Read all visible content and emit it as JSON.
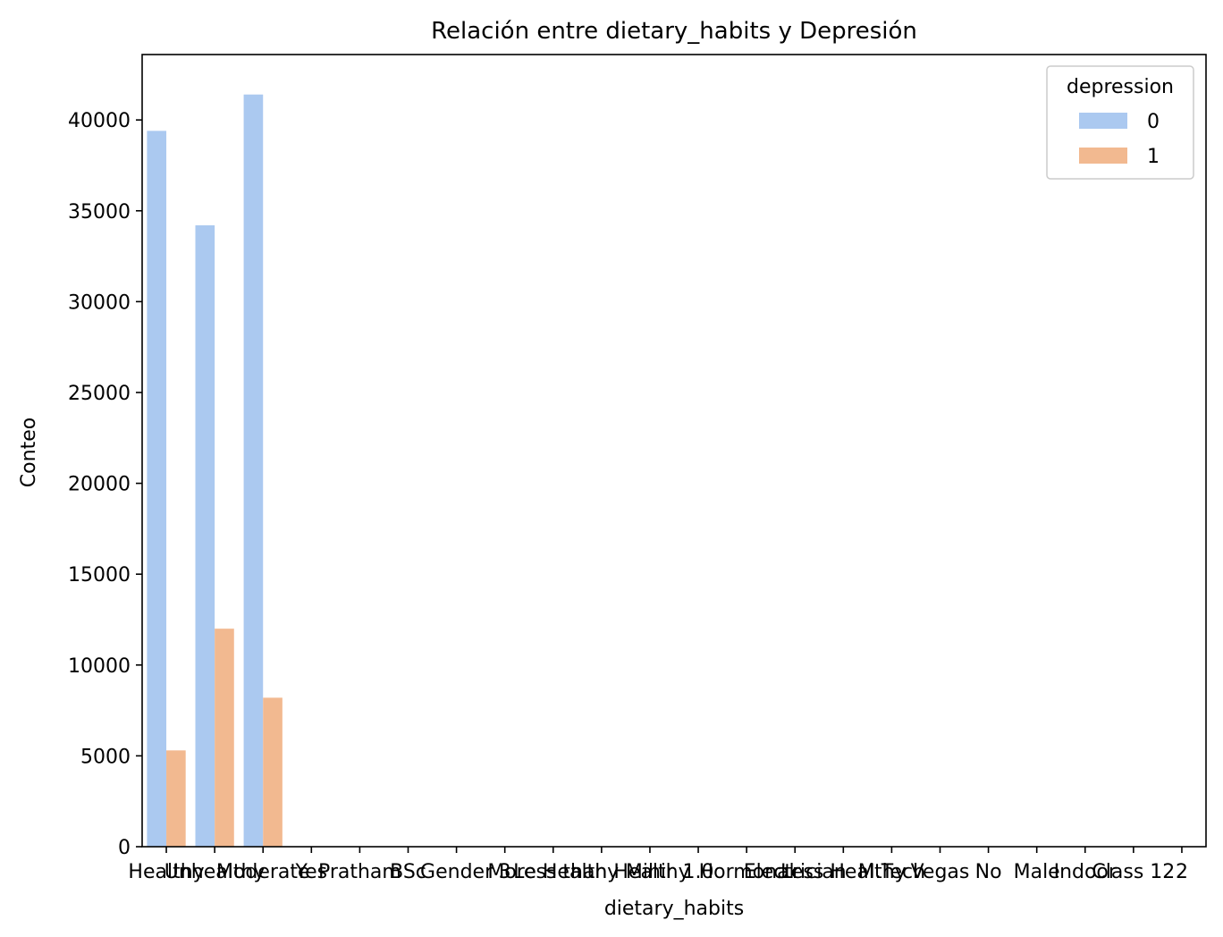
{
  "colors": {
    "series_0": "#abc9f0",
    "series_1": "#f2b990",
    "axis": "#000000",
    "legend_border": "#cccccc"
  },
  "chart_data": {
    "type": "bar",
    "title": "Relación entre dietary_habits y Depresión",
    "xlabel": "dietary_habits",
    "ylabel": "Conteo",
    "ylim": [
      0,
      43600
    ],
    "yticks": [
      0,
      5000,
      10000,
      15000,
      20000,
      25000,
      30000,
      35000,
      40000
    ],
    "ytick_labels": [
      "0",
      "5000",
      "10000",
      "15000",
      "20000",
      "25000",
      "30000",
      "35000",
      "40000"
    ],
    "categories": [
      "Healthy",
      "Unhealthy",
      "Moderate",
      "Yes",
      "Pratham",
      "BSc",
      "Gender",
      "3",
      "More Healthy",
      "Less than Healthy",
      "Mihir",
      "1.0",
      "Hormonal",
      "Electrician",
      "Less Healthy",
      "M.Tech",
      "Vegas",
      "No",
      "Male",
      "Indoor",
      "Class 12",
      "2"
    ],
    "legend_title": "depression",
    "legend_placement": "top-right",
    "grid": false,
    "series": [
      {
        "name": "0",
        "values": [
          39400,
          34200,
          41400,
          0,
          0,
          0,
          0,
          0,
          0,
          0,
          0,
          0,
          0,
          0,
          0,
          0,
          0,
          0,
          0,
          0,
          0,
          0
        ]
      },
      {
        "name": "1",
        "values": [
          5300,
          12000,
          8200,
          0,
          0,
          0,
          0,
          0,
          0,
          0,
          0,
          0,
          0,
          0,
          0,
          0,
          0,
          0,
          0,
          0,
          0,
          0
        ]
      }
    ]
  }
}
